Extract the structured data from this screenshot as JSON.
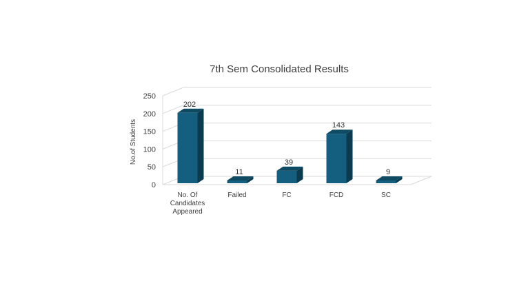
{
  "chart_data": {
    "type": "bar",
    "title": "7th Sem Consolidated Results",
    "xlabel": "",
    "ylabel": "No.of Students",
    "ylim": [
      0,
      250
    ],
    "yticks": [
      0,
      50,
      100,
      150,
      200,
      250
    ],
    "grid": true,
    "legend": "none",
    "style": "3d-column",
    "categories": [
      [
        "No. Of",
        "Candidates",
        "Appeared"
      ],
      [
        "Failed"
      ],
      [
        "FC"
      ],
      [
        "FCD"
      ],
      [
        "SC"
      ]
    ],
    "values": [
      202,
      11,
      39,
      143,
      9
    ],
    "colors": {
      "front": "#145f7f",
      "side": "#0c3a4e",
      "top": "#0f4a63"
    }
  }
}
